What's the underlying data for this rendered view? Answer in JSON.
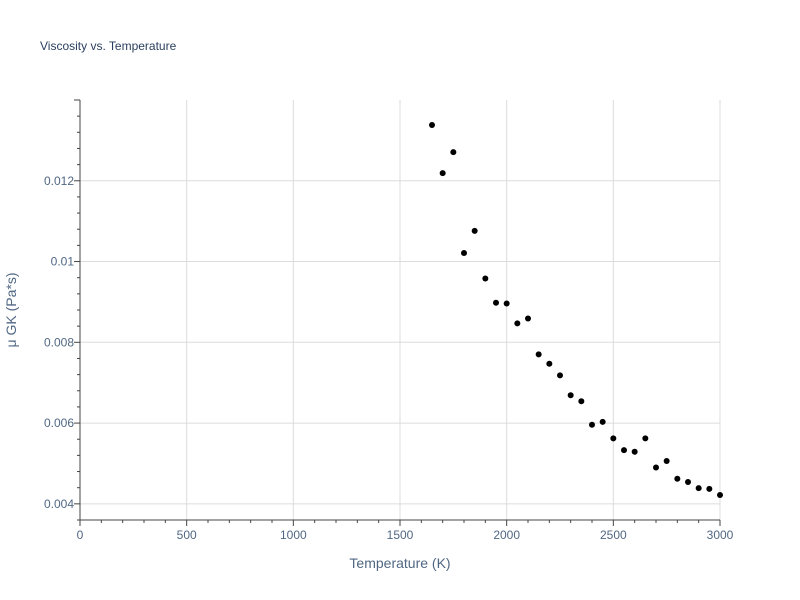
{
  "chart_data": {
    "type": "scatter",
    "title": "Viscosity vs. Temperature",
    "xlabel": "Temperature (K)",
    "ylabel": "μ GK (Pa*s)",
    "xlim": [
      0,
      3000
    ],
    "ylim": [
      0.0036,
      0.014
    ],
    "grid": true,
    "x_ticks": [
      0,
      500,
      1000,
      1500,
      2000,
      2500,
      3000
    ],
    "x_tick_labels": [
      "0",
      "500",
      "1000",
      "1500",
      "2000",
      "2500",
      "3000"
    ],
    "y_ticks": [
      0.004,
      0.006,
      0.008,
      0.01,
      0.012
    ],
    "y_tick_labels": [
      "0.004",
      "0.006",
      "0.008",
      "0.01",
      "0.012"
    ],
    "marker_color": "#000000",
    "series": [
      {
        "x": [
          1650,
          1700,
          1750,
          1800,
          1850,
          1900,
          1950,
          2000,
          2050,
          2100,
          2150,
          2200,
          2250,
          2300,
          2350,
          2400,
          2450,
          2500,
          2550,
          2600,
          2650,
          2700,
          2750,
          2800,
          2850,
          2900,
          2950,
          3000
        ],
        "y": [
          0.01338,
          0.01219,
          0.01271,
          0.01021,
          0.01076,
          0.00958,
          0.00898,
          0.00896,
          0.00847,
          0.00859,
          0.0077,
          0.00747,
          0.00718,
          0.00669,
          0.00654,
          0.00596,
          0.00603,
          0.00562,
          0.00533,
          0.00529,
          0.00562,
          0.0049,
          0.00506,
          0.00462,
          0.00454,
          0.00439,
          0.00437,
          0.00422
        ]
      }
    ]
  }
}
